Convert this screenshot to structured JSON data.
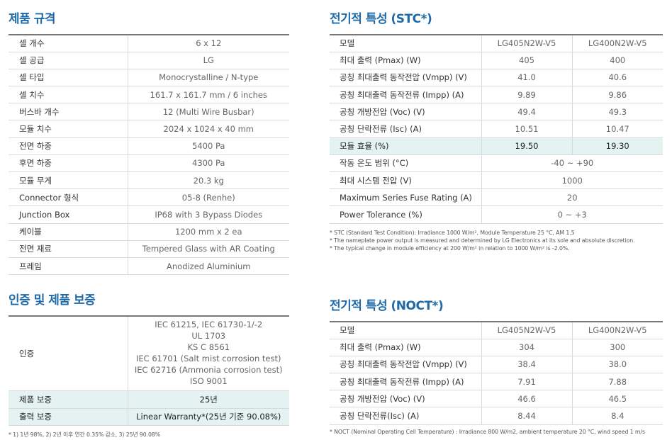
{
  "spec": {
    "title": "제품 규격",
    "rows": [
      {
        "label": "셀 개수",
        "value": "6 x 12"
      },
      {
        "label": "셀 공급",
        "value": "LG"
      },
      {
        "label": "셀 타입",
        "value": "Monocrystalline / N-type"
      },
      {
        "label": "셀 치수",
        "value": "161.7 x 161.7 mm / 6 inches"
      },
      {
        "label": "버스바 개수",
        "value": "12 (Multi Wire Busbar)"
      },
      {
        "label": "모듈 치수",
        "value": "2024 x 1024 x 40 mm"
      },
      {
        "label": "전면 하중",
        "value": "5400 Pa"
      },
      {
        "label": "후면 하중",
        "value": "4300 Pa"
      },
      {
        "label": "모듈 무게",
        "value": "20.3 kg"
      },
      {
        "label": "Connector 형식",
        "value": "05-8 (Renhe)"
      },
      {
        "label": "Junction Box",
        "value": "IP68 with 3 Bypass Diodes"
      },
      {
        "label": "케이블",
        "value": "1200 mm x 2 ea"
      },
      {
        "label": "전면 재료",
        "value": "Tempered Glass with AR Coating"
      },
      {
        "label": "프레임",
        "value": "Anodized Aluminium"
      }
    ]
  },
  "cert": {
    "title": "인증 및 제품 보증",
    "cert_label": "인증",
    "cert_lines": [
      "IEC 61215, IEC 61730-1/-2",
      "UL 1703",
      "KS C 8561",
      "IEC 61701 (Salt mist corrosion test)",
      "IEC 62716 (Ammonia corrosion test)",
      "ISO 9001"
    ],
    "product_warranty_label": "제품 보증",
    "product_warranty_value": "25년",
    "output_warranty_label": "출력 보증",
    "output_warranty_value": "Linear Warranty*(25년 기준 90.08%)",
    "note": "* 1) 1년 98%, 2) 2년 이후 연간 0.35% 감소, 3) 25년 90.08%"
  },
  "stc": {
    "title": "전기적 특성 (STC*)",
    "header": {
      "label": "모델",
      "model1": "LG405N2W-V5",
      "model2": "LG400N2W-V5"
    },
    "rows": [
      {
        "label": "최대 출력 (Pmax) (W)",
        "v1": "405",
        "v2": "400"
      },
      {
        "label": "공칭 최대출력 동작전압 (Vmpp) (V)",
        "v1": "41.0",
        "v2": "40.6"
      },
      {
        "label": "공칭 최대출력 동작전류 (Impp) (A)",
        "v1": "9.89",
        "v2": "9.86"
      },
      {
        "label": "공칭 개방전압 (Voc) (V)",
        "v1": "49.4",
        "v2": "49.3"
      },
      {
        "label": "공칭 단락전류 (Isc) (A)",
        "v1": "10.51",
        "v2": "10.47"
      }
    ],
    "efficiency": {
      "label": "모듈 효율 (%)",
      "v1": "19.50",
      "v2": "19.30"
    },
    "merged_rows": [
      {
        "label": "작동 온도 범위 (°C)",
        "value": "-40 ~ +90"
      },
      {
        "label": "최대 시스템 전압 (V)",
        "value": "1000"
      },
      {
        "label": "Maximum Series Fuse Rating (A)",
        "value": "20"
      },
      {
        "label": "Power Tolerance (%)",
        "value": "0 ~ +3"
      }
    ],
    "notes": [
      "* STC (Standard Test Condition): Irradiance 1000 W/m², Module Temperature 25 °C, AM 1.5",
      "* The nameplate power output is measured and determined by LG Electronics at its sole and absolute discretion.",
      "* The typical change in module efficiency at 200 W/m² in relation to 1000 W/m² is -2.0%."
    ]
  },
  "noct": {
    "title": "전기적 특성 (NOCT*)",
    "header": {
      "label": "모델",
      "model1": "LG405N2W-V5",
      "model2": "LG400N2W-V5"
    },
    "rows": [
      {
        "label": "최대 출력 (Pmax) (W)",
        "v1": "304",
        "v2": "300"
      },
      {
        "label": "공칭 최대출력 동작전압 (Vmpp) (V)",
        "v1": "38.4",
        "v2": "38.0"
      },
      {
        "label": "공칭 최대출력 동작전류 (Impp) (A)",
        "v1": "7.91",
        "v2": "7.88"
      },
      {
        "label": "공칭 개방전압 (Voc) (V)",
        "v1": "46.6",
        "v2": "46.5"
      },
      {
        "label": "공칭 단락전류(Isc) (A)",
        "v1": "8.44",
        "v2": "8.4"
      }
    ],
    "note": "* NOCT (Nominal Operating Cell Temperature) : Irradiance 800 W/m2, ambient temperature 20 °C, wind speed 1 m/s"
  }
}
